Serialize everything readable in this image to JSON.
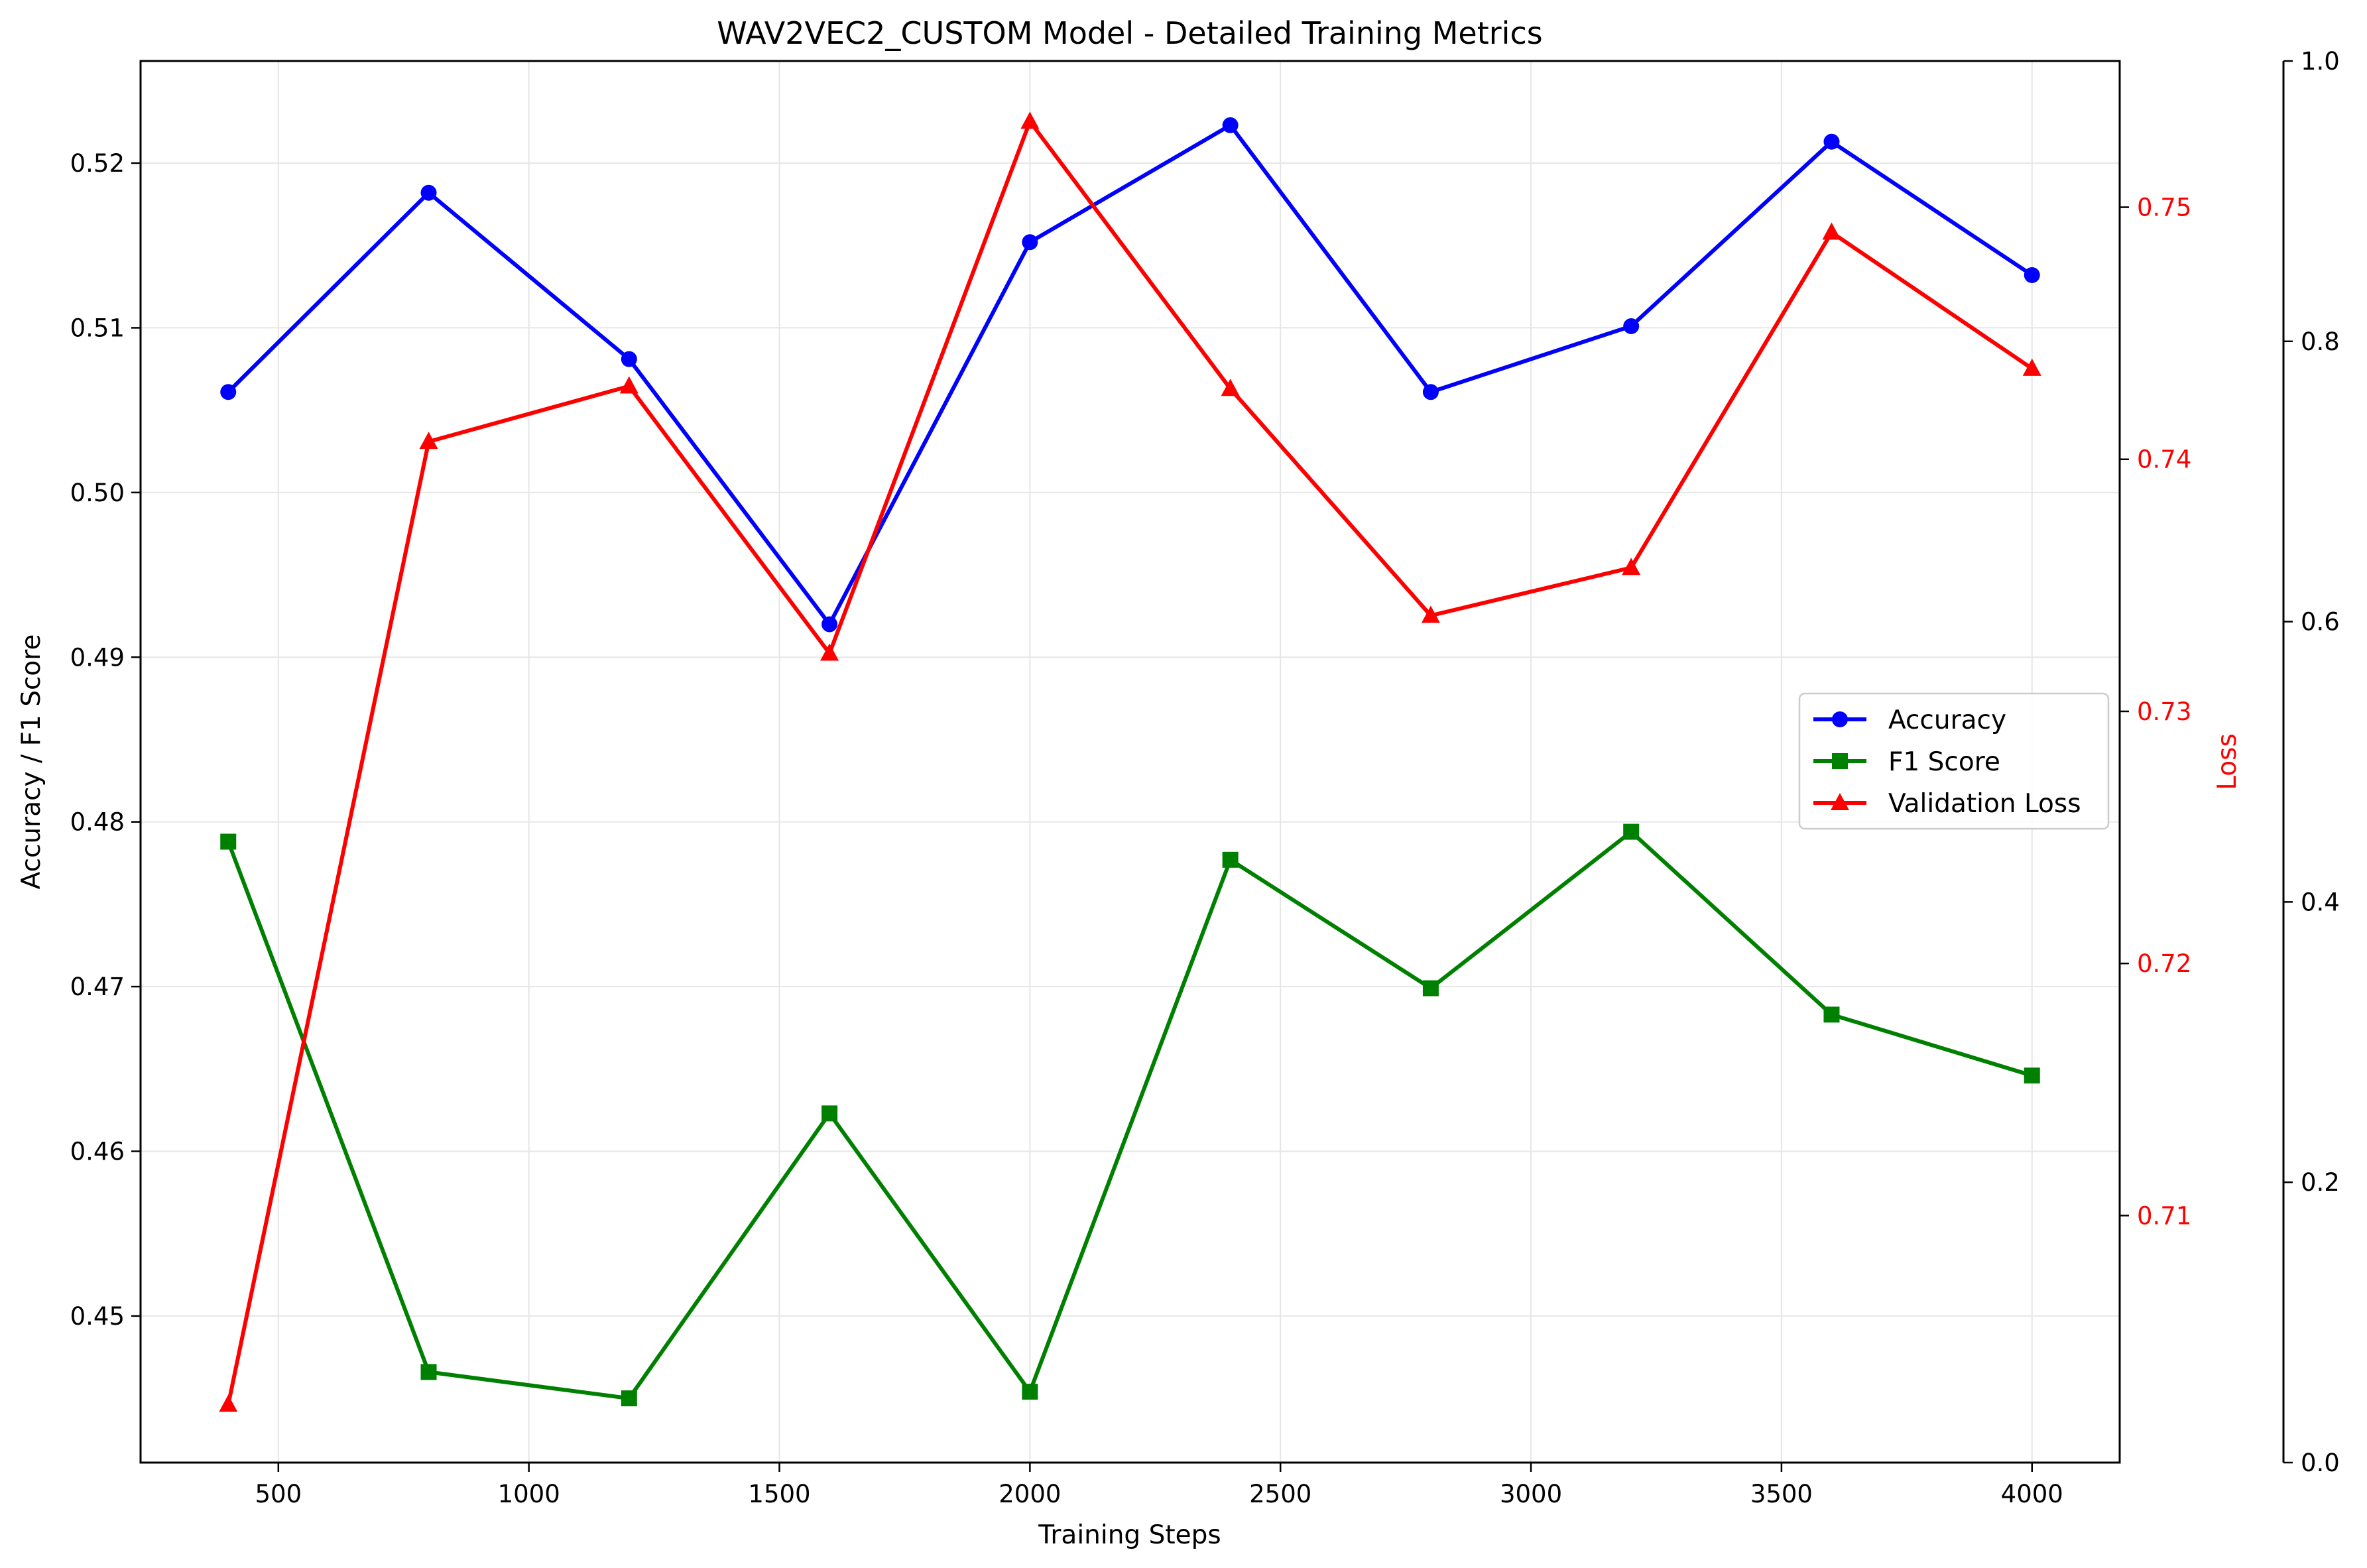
{
  "chart_data": {
    "type": "line",
    "title": "WAV2VEC2_CUSTOM Model - Detailed Training Metrics",
    "xlabel": "Training Steps",
    "ylabel_left": "Accuracy / F1 Score",
    "ylabel_right": "Loss",
    "x": [
      400,
      800,
      1200,
      1600,
      2000,
      2400,
      2800,
      3200,
      3600,
      4000
    ],
    "xlim": [
      225,
      4175
    ],
    "ylim_left": [
      0.4411,
      0.5262
    ],
    "ylim_right": [
      0.7002,
      0.7558
    ],
    "ylim_extra": [
      0.0,
      1.0
    ],
    "x_ticks": [
      "500",
      "1000",
      "1500",
      "2000",
      "2500",
      "3000",
      "3500",
      "4000"
    ],
    "y_left_ticks": [
      "0.45",
      "0.46",
      "0.47",
      "0.48",
      "0.49",
      "0.50",
      "0.51",
      "0.52"
    ],
    "y_right_ticks": [
      "0.71",
      "0.72",
      "0.73",
      "0.74",
      "0.75"
    ],
    "y_extra_ticks": [
      "0.0",
      "0.2",
      "0.4",
      "0.6",
      "0.8",
      "1.0"
    ],
    "grid": true,
    "legend_position": "center-right",
    "series": [
      {
        "name": "Accuracy",
        "axis": "left",
        "color": "#0000ff",
        "marker": "circle",
        "values": [
          0.5061,
          0.5182,
          0.5081,
          0.492,
          0.5152,
          0.5223,
          0.5061,
          0.5101,
          0.5213,
          0.5132
        ]
      },
      {
        "name": "F1 Score",
        "axis": "left",
        "color": "#008000",
        "marker": "square",
        "values": [
          0.4788,
          0.4466,
          0.445,
          0.4623,
          0.4454,
          0.4777,
          0.4699,
          0.4794,
          0.4683,
          0.4646
        ]
      },
      {
        "name": "Validation Loss",
        "axis": "right",
        "color": "#ff0000",
        "marker": "triangle",
        "values": [
          0.7025,
          0.7407,
          0.7429,
          0.7323,
          0.7534,
          0.7428,
          0.7338,
          0.7357,
          0.749,
          0.7436
        ]
      }
    ]
  },
  "colors": {
    "loss_axis": "#ff0000",
    "grid": "#e6e6e6",
    "axis": "#000000"
  }
}
